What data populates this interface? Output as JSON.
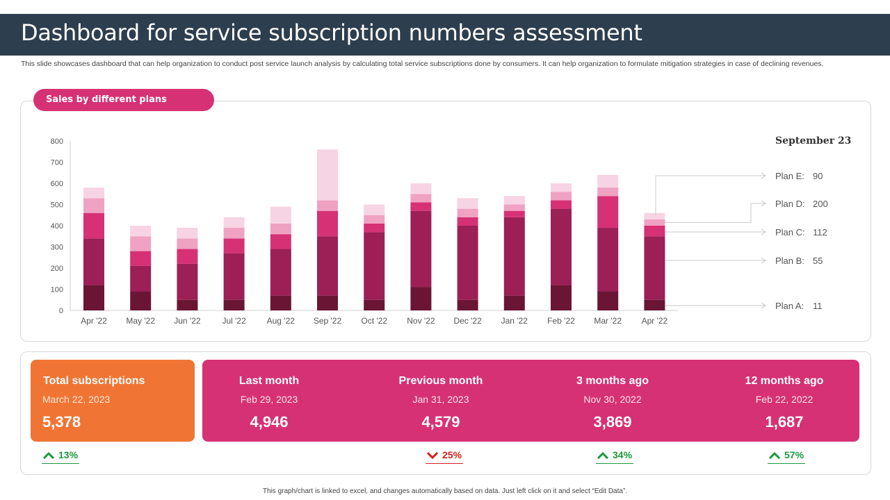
{
  "title": "Dashboard for service subscription numbers assessment",
  "description": "This slide showcases dashboard that can help organization to conduct post service launch analysis by calculating total service subscriptions done by consumers. It can help organization to formulate mitigation strategies in case of declining revenues.",
  "chart_section": {
    "label": "Sales by different plans"
  },
  "chart_data": {
    "type": "bar",
    "stacked": true,
    "categories": [
      "Apr '22",
      "May '22",
      "Jun '22",
      "Jul '22",
      "Aug '22",
      "Sep '22",
      "Oct '22",
      "Nov '22",
      "Dec '22",
      "Jan '22",
      "Feb '22",
      "Mar '22",
      "Apr '22"
    ],
    "series": [
      {
        "name": "Plan A",
        "color": "#6b1535",
        "values": [
          120,
          90,
          50,
          50,
          70,
          70,
          50,
          110,
          50,
          70,
          120,
          90,
          50
        ]
      },
      {
        "name": "Plan B",
        "color": "#9c1f55",
        "values": [
          220,
          120,
          170,
          220,
          220,
          280,
          320,
          360,
          350,
          370,
          360,
          300,
          300
        ]
      },
      {
        "name": "Plan C",
        "color": "#d63175",
        "values": [
          120,
          70,
          70,
          70,
          70,
          120,
          40,
          40,
          40,
          30,
          40,
          150,
          50
        ]
      },
      {
        "name": "Plan D",
        "color": "#f0a2c3",
        "values": [
          70,
          70,
          50,
          50,
          50,
          50,
          40,
          40,
          40,
          30,
          40,
          40,
          30
        ]
      },
      {
        "name": "Plan E",
        "color": "#f7d4e3",
        "values": [
          50,
          50,
          50,
          50,
          80,
          240,
          50,
          50,
          50,
          40,
          40,
          60,
          30
        ]
      }
    ],
    "ylim": [
      0,
      800
    ],
    "yticks": [
      0,
      100,
      200,
      300,
      400,
      500,
      600,
      700,
      800
    ],
    "grid": false,
    "callout": {
      "title": "September 23",
      "items": [
        {
          "label": "Plan E:",
          "value": "90"
        },
        {
          "label": "Plan D:",
          "value": "200"
        },
        {
          "label": "Plan C:",
          "value": "112"
        },
        {
          "label": "Plan B:",
          "value": "55"
        },
        {
          "label": "Plan A:",
          "value": "11"
        }
      ]
    }
  },
  "kpis": {
    "total": {
      "title": "Total subscriptions",
      "date": "March 22, 2023",
      "value": "5,378",
      "change": "13%"
    },
    "columns": [
      {
        "title": "Last month",
        "date": "Feb 29, 2023",
        "value": "4,946",
        "change": ""
      },
      {
        "title": "Previous month",
        "date": "Jan 31, 2023",
        "value": "4,579",
        "change": "25%",
        "direction": "down"
      },
      {
        "title": "3 months ago",
        "date": "Nov 30, 2022",
        "value": "3,869",
        "change": "34%",
        "direction": "up"
      },
      {
        "title": "12 months ago",
        "date": "Feb 22, 2022",
        "value": "1,687",
        "change": "57%",
        "direction": "up"
      }
    ]
  },
  "footer": "This graph/chart is linked to excel, and changes automatically based on data. Just left click on it and select “Edit Data”."
}
